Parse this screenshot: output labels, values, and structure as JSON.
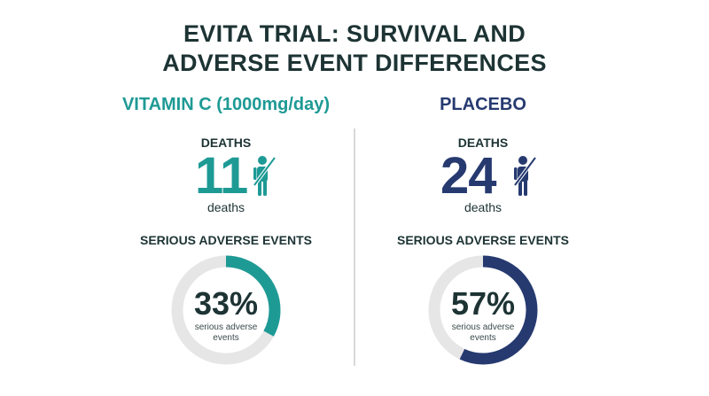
{
  "title": {
    "line1": "EVITA TRIAL: SURVIVAL AND",
    "line2": "ADVERSE EVENT DIFFERENCES"
  },
  "vitamin": {
    "heading": "VITAMIN C (1000mg/day)",
    "deaths_label": "DEATHS",
    "deaths_value": "11",
    "deaths_unit": "deaths",
    "sae_label": "SERIOUS ADVERSE EVENTS",
    "sae_percent": "33%",
    "sae_fraction": 0.33,
    "sae_caption_line1": "serious adverse",
    "sae_caption_line2": "events",
    "color": "#1e9a95",
    "icon": "person-crossed-icon"
  },
  "placebo": {
    "heading": "PLACEBO",
    "deaths_label": "DEATHS",
    "deaths_value": "24",
    "deaths_unit": "deaths",
    "sae_label": "SERIOUS ADVERSE EVENTS",
    "sae_percent": "57%",
    "sae_fraction": 0.57,
    "sae_caption_line1": "serious adverse",
    "sae_caption_line2": "events",
    "color": "#263a70",
    "icon": "person-crossed-icon"
  },
  "colors": {
    "title": "#1d3334",
    "ring_track": "#e6e6e6",
    "divider": "#d8d8d8"
  }
}
